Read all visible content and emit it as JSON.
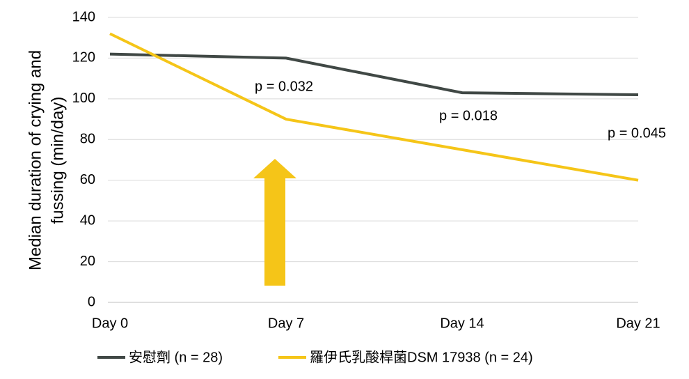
{
  "chart_data": {
    "type": "line",
    "ylabel": [
      "Median duration of crying and",
      "fussing (min/day)"
    ],
    "categories": [
      "Day 0",
      "Day 7",
      "Day 14",
      "Day 21"
    ],
    "series": [
      {
        "name": "安慰劑 (n = 28)",
        "color": "#404845",
        "values": [
          122,
          120,
          103,
          102
        ]
      },
      {
        "name": "羅伊氏乳酸桿菌DSM 17938 (n = 24)",
        "color": "#f5c518",
        "values": [
          132,
          90,
          75,
          60
        ]
      }
    ],
    "annotations": [
      "p = 0.032",
      "p = 0.018",
      "p = 0.045"
    ],
    "ylim": [
      0,
      140
    ],
    "yticks": [
      0,
      20,
      40,
      60,
      80,
      100,
      120,
      140
    ],
    "grid": true
  }
}
